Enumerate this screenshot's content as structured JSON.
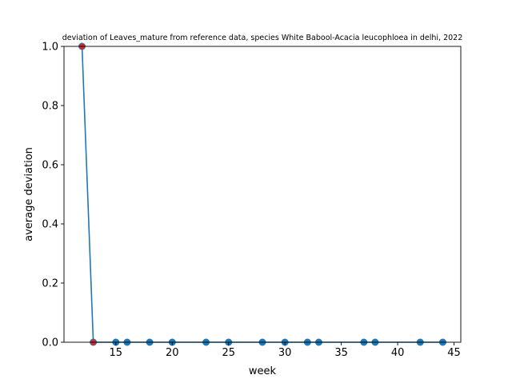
{
  "chart_data": {
    "type": "line",
    "title": "deviation of Leaves_mature from reference data, species White Babool-Acacia leucophloea in delhi, 2022",
    "xlabel": "week",
    "ylabel": "average deviation",
    "xlim": [
      10.4,
      45.6
    ],
    "ylim": [
      0,
      1.0
    ],
    "x_ticks": [
      15,
      20,
      25,
      30,
      35,
      40,
      45
    ],
    "y_ticks": [
      0.0,
      0.2,
      0.4,
      0.6,
      0.8,
      1.0
    ],
    "x_tick_labels": [
      "15",
      "20",
      "25",
      "30",
      "35",
      "40",
      "45"
    ],
    "y_tick_labels": [
      "0.0",
      "0.2",
      "0.4",
      "0.6",
      "0.8",
      "1.0"
    ],
    "grid": false,
    "series": [
      {
        "color": "#1f77b4",
        "marker": "circle",
        "x": [
          12,
          13,
          15,
          16,
          18,
          20,
          23,
          25,
          28,
          30,
          32,
          33,
          37,
          38,
          42,
          44
        ],
        "y": [
          1.0,
          0,
          0,
          0,
          0,
          0,
          0,
          0,
          0,
          0,
          0,
          0,
          0,
          0,
          0,
          0
        ]
      }
    ],
    "highlight_points": {
      "color": "#d62728",
      "marker": "diamond",
      "x": [
        12,
        13
      ],
      "y": [
        1.0,
        0
      ]
    }
  }
}
